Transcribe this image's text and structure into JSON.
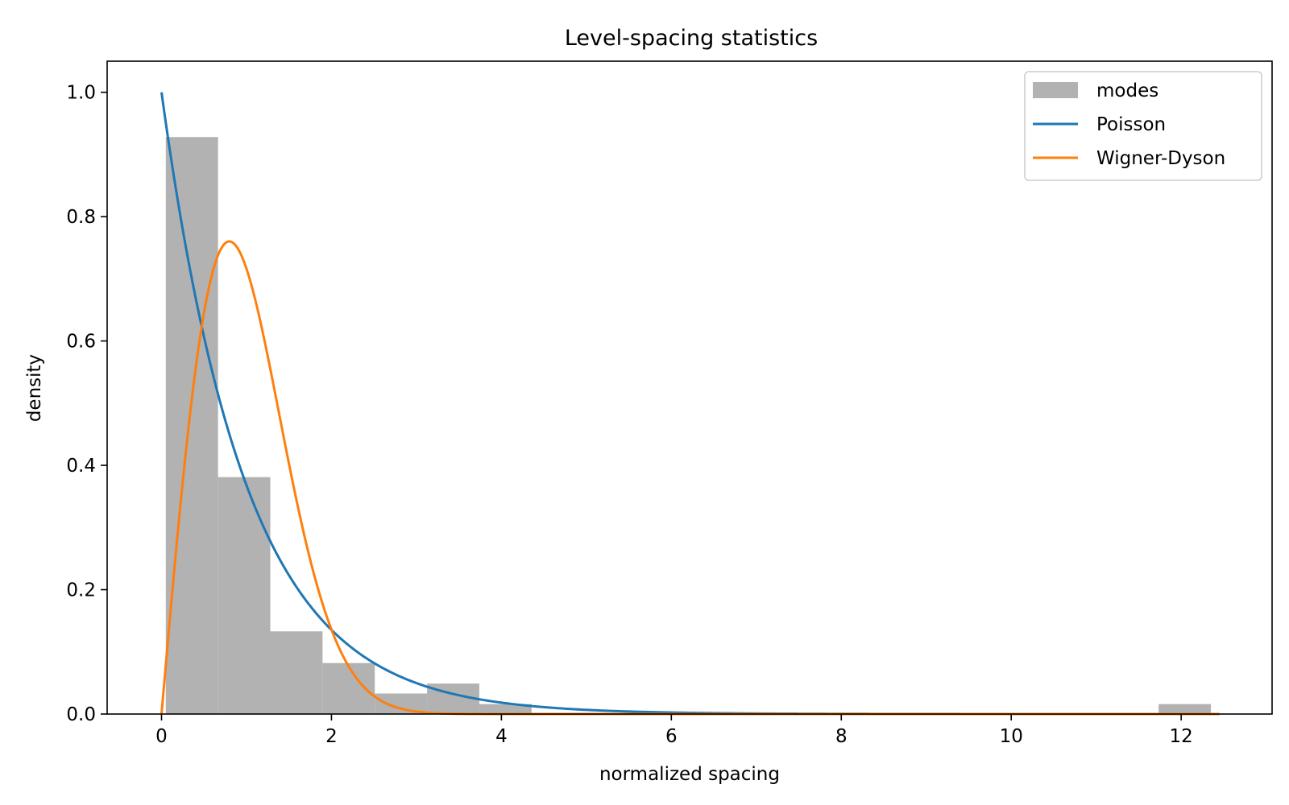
{
  "chart_data": {
    "type": "bar",
    "title": "Level-spacing statistics",
    "xlabel": "normalized spacing",
    "ylabel": "density",
    "xlim": [
      -0.64,
      13.07
    ],
    "ylim": [
      0,
      1.05
    ],
    "xticks": [
      0,
      2,
      4,
      6,
      8,
      10,
      12
    ],
    "yticks": [
      0.0,
      0.2,
      0.4,
      0.6,
      0.8,
      1.0
    ],
    "xtick_labels": [
      "0",
      "2",
      "4",
      "6",
      "8",
      "10",
      "12"
    ],
    "ytick_labels": [
      "0.0",
      "0.2",
      "0.4",
      "0.6",
      "0.8",
      "1.0"
    ],
    "grid": false,
    "legend_position": "top-right",
    "histogram": {
      "name": "modes",
      "color": "#b2b2b2",
      "bin_edges": [
        0.05,
        0.665,
        1.28,
        1.895,
        2.51,
        3.125,
        3.74,
        4.355,
        4.97,
        5.585,
        6.2,
        6.815,
        7.43,
        8.045,
        8.66,
        9.275,
        9.89,
        10.505,
        11.12,
        11.735,
        12.35
      ],
      "values": [
        0.928,
        0.381,
        0.133,
        0.082,
        0.033,
        0.049,
        0.016,
        0,
        0,
        0,
        0,
        0,
        0,
        0,
        0,
        0,
        0,
        0,
        0,
        0.016
      ]
    },
    "series": [
      {
        "name": "Poisson",
        "type": "line",
        "color": "#1f77b4",
        "function": "exp(-s)",
        "x_range": [
          0,
          12.45
        ]
      },
      {
        "name": "Wigner-Dyson",
        "type": "line",
        "color": "#ff7f0e",
        "function": "(pi/2) s exp(-pi s^2/4)",
        "x_range": [
          0,
          12.45
        ]
      }
    ]
  }
}
